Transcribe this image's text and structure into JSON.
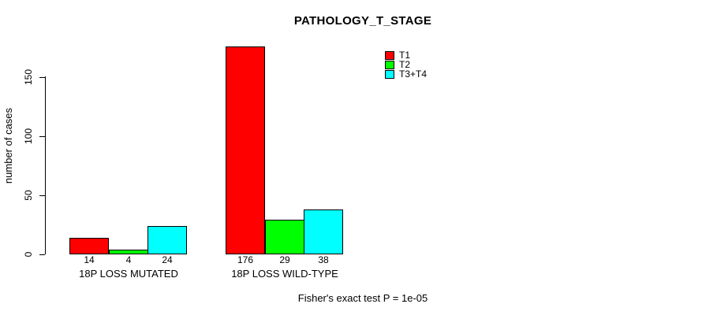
{
  "chart_data": {
    "type": "bar",
    "title": "PATHOLOGY_T_STAGE",
    "ylabel": "number of cases",
    "xlabel": "",
    "yticks": [
      0,
      50,
      100,
      150
    ],
    "ylim": [
      0,
      176
    ],
    "grid": false,
    "legend_position": "top-right",
    "categories": [
      "18P LOSS MUTATED",
      "18P LOSS WILD-TYPE"
    ],
    "series": [
      {
        "name": "T1",
        "color": "#ff0000",
        "values": [
          14,
          176
        ]
      },
      {
        "name": "T2",
        "color": "#00ff00",
        "values": [
          4,
          29
        ]
      },
      {
        "name": "T3+T4",
        "color": "#00ffff",
        "values": [
          24,
          38
        ]
      }
    ],
    "bar_value_labels": [
      [
        14,
        4,
        24
      ],
      [
        176,
        29,
        38
      ]
    ],
    "annotation": "Fisher's exact test P = 1e-05"
  }
}
